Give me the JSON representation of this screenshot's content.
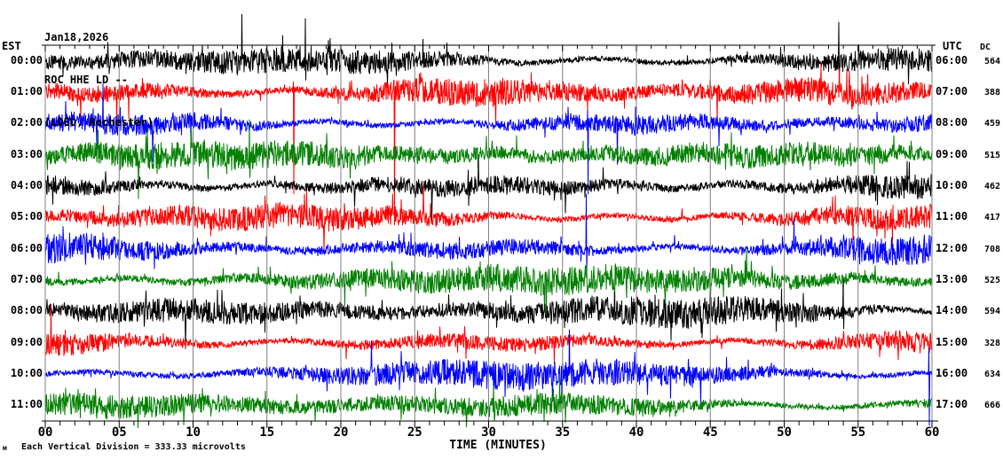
{
  "title": {
    "date": "Jan18,2026",
    "station": "ROC HHE LD --",
    "network_location": "(LDEO, Rochester)"
  },
  "left_axis": {
    "header": "EST"
  },
  "right_axis": {
    "header": "UTC"
  },
  "dc_column": {
    "header": "DC"
  },
  "x_axis": {
    "label": "TIME (MINUTES)",
    "tick_labels": [
      "00",
      "05",
      "10",
      "15",
      "20",
      "25",
      "30",
      "35",
      "40",
      "45",
      "50",
      "55",
      "60"
    ],
    "minor_tick_every_minutes": 1,
    "major_tick_every_minutes": 5
  },
  "footer": {
    "scale_note": "Each Vertical Division =  333.33 microvolts",
    "corner_mark": "м"
  },
  "colors": {
    "trace_cycle": [
      "#000000",
      "#ff0000",
      "#0000ff",
      "#008000"
    ],
    "grid": "#808080",
    "border": "#808080",
    "axis": "#000000",
    "text": "#000000",
    "background": "#ffffff"
  },
  "chart_data": {
    "type": "line",
    "subtype": "helicorder_seismogram",
    "duration_minutes": 60,
    "x_range_minutes": [
      0,
      60
    ],
    "grid_interval_minutes": 5,
    "rows_count": 12,
    "vertical_division_microvolts": 333.33,
    "rows": [
      {
        "est": "00:00",
        "utc": "06:00",
        "dc": 564,
        "color": "#000000",
        "noise_amp": 18,
        "seed": 1
      },
      {
        "est": "01:00",
        "utc": "07:00",
        "dc": 388,
        "color": "#ff0000",
        "noise_amp": 16,
        "seed": 2
      },
      {
        "est": "02:00",
        "utc": "08:00",
        "dc": 459,
        "color": "#0000ff",
        "noise_amp": 16,
        "seed": 3
      },
      {
        "est": "03:00",
        "utc": "09:00",
        "dc": 515,
        "color": "#008000",
        "noise_amp": 17,
        "seed": 4
      },
      {
        "est": "04:00",
        "utc": "10:00",
        "dc": 462,
        "color": "#000000",
        "noise_amp": 18,
        "seed": 5
      },
      {
        "est": "05:00",
        "utc": "11:00",
        "dc": 417,
        "color": "#ff0000",
        "noise_amp": 16,
        "seed": 6
      },
      {
        "est": "06:00",
        "utc": "12:00",
        "dc": 708,
        "color": "#0000ff",
        "noise_amp": 17,
        "seed": 7
      },
      {
        "est": "07:00",
        "utc": "13:00",
        "dc": 525,
        "color": "#008000",
        "noise_amp": 16,
        "seed": 8
      },
      {
        "est": "08:00",
        "utc": "14:00",
        "dc": 594,
        "color": "#000000",
        "noise_amp": 18,
        "seed": 9
      },
      {
        "est": "09:00",
        "utc": "15:00",
        "dc": 328,
        "color": "#ff0000",
        "noise_amp": 15,
        "seed": 10
      },
      {
        "est": "10:00",
        "utc": "16:00",
        "dc": 634,
        "color": "#0000ff",
        "noise_amp": 16,
        "seed": 11
      },
      {
        "est": "11:00",
        "utc": "17:00",
        "dc": 666,
        "color": "#008000",
        "noise_amp": 17,
        "seed": 12
      }
    ],
    "spike_events": [
      {
        "row": 0,
        "minute": 17.6,
        "up": 48,
        "down": 22
      },
      {
        "row": 0,
        "minute": 53.7,
        "up": 44,
        "down": 18
      },
      {
        "row": 1,
        "minute": 16.8,
        "up": 12,
        "down": 115
      },
      {
        "row": 1,
        "minute": 23.6,
        "up": 14,
        "down": 150
      },
      {
        "row": 2,
        "minute": 36.7,
        "up": 16,
        "down": 80
      },
      {
        "row": 3,
        "minute": 13.8,
        "up": 40,
        "down": 26
      },
      {
        "row": 6,
        "minute": 36.6,
        "up": 62,
        "down": 26
      },
      {
        "row": 8,
        "minute": 54.0,
        "up": 36,
        "down": 20
      },
      {
        "row": 10,
        "minute": 59.8,
        "up": 30,
        "down": 58
      }
    ]
  }
}
